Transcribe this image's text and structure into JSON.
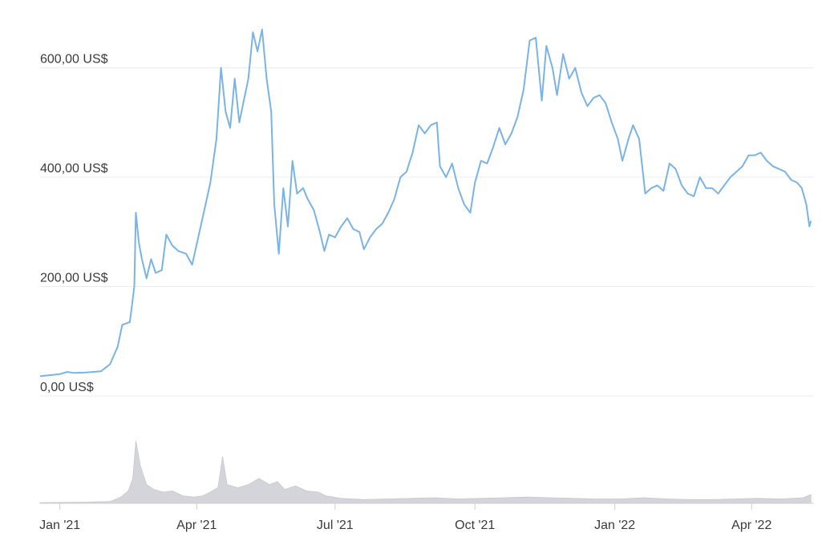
{
  "chart_data": {
    "type": "line",
    "title": "",
    "xlabel": "",
    "ylabel": "",
    "ylim": [
      0,
      680
    ],
    "grid": true,
    "legend": "none",
    "y_ticks": [
      {
        "value": 0,
        "label": "0,00 US$"
      },
      {
        "value": 200,
        "label": "200,00 US$"
      },
      {
        "value": 400,
        "label": "400,00 US$"
      },
      {
        "value": 600,
        "label": "600,00 US$"
      }
    ],
    "x_ticks": [
      {
        "date": "2021-01-01",
        "label": "Jan '21"
      },
      {
        "date": "2021-04-01",
        "label": "Apr '21"
      },
      {
        "date": "2021-07-01",
        "label": "Jul '21"
      },
      {
        "date": "2021-10-01",
        "label": "Oct '21"
      },
      {
        "date": "2022-01-01",
        "label": "Jan '22"
      },
      {
        "date": "2022-04-01",
        "label": "Apr '22"
      }
    ],
    "xlim": [
      "2020-12-19",
      "2022-05-12"
    ],
    "price_color": "#7ab3e8",
    "volume_color": "#d4d5da",
    "series": [
      {
        "values": [
          [
            "2020-12-19",
            36
          ],
          [
            "2021-01-01",
            40
          ],
          [
            "2021-01-06",
            44
          ],
          [
            "2021-01-10",
            42
          ],
          [
            "2021-01-18",
            43
          ],
          [
            "2021-01-28",
            45
          ],
          [
            "2021-02-03",
            58
          ],
          [
            "2021-02-08",
            90
          ],
          [
            "2021-02-11",
            130
          ],
          [
            "2021-02-16",
            135
          ],
          [
            "2021-02-19",
            200
          ],
          [
            "2021-02-20",
            335
          ],
          [
            "2021-02-22",
            280
          ],
          [
            "2021-02-24",
            250
          ],
          [
            "2021-02-27",
            215
          ],
          [
            "2021-03-02",
            250
          ],
          [
            "2021-03-05",
            225
          ],
          [
            "2021-03-09",
            230
          ],
          [
            "2021-03-12",
            295
          ],
          [
            "2021-03-16",
            275
          ],
          [
            "2021-03-20",
            265
          ],
          [
            "2021-03-25",
            260
          ],
          [
            "2021-03-29",
            240
          ],
          [
            "2021-04-02",
            290
          ],
          [
            "2021-04-06",
            340
          ],
          [
            "2021-04-10",
            390
          ],
          [
            "2021-04-14",
            470
          ],
          [
            "2021-04-17",
            600
          ],
          [
            "2021-04-20",
            520
          ],
          [
            "2021-04-23",
            490
          ],
          [
            "2021-04-26",
            580
          ],
          [
            "2021-04-29",
            500
          ],
          [
            "2021-05-02",
            540
          ],
          [
            "2021-05-05",
            580
          ],
          [
            "2021-05-08",
            665
          ],
          [
            "2021-05-11",
            630
          ],
          [
            "2021-05-14",
            670
          ],
          [
            "2021-05-17",
            580
          ],
          [
            "2021-05-20",
            520
          ],
          [
            "2021-05-22",
            350
          ],
          [
            "2021-05-25",
            260
          ],
          [
            "2021-05-28",
            380
          ],
          [
            "2021-05-31",
            310
          ],
          [
            "2021-06-03",
            430
          ],
          [
            "2021-06-06",
            370
          ],
          [
            "2021-06-10",
            380
          ],
          [
            "2021-06-13",
            360
          ],
          [
            "2021-06-17",
            340
          ],
          [
            "2021-06-21",
            300
          ],
          [
            "2021-06-24",
            265
          ],
          [
            "2021-06-27",
            295
          ],
          [
            "2021-07-01",
            290
          ],
          [
            "2021-07-05",
            310
          ],
          [
            "2021-07-09",
            325
          ],
          [
            "2021-07-13",
            305
          ],
          [
            "2021-07-17",
            300
          ],
          [
            "2021-07-20",
            268
          ],
          [
            "2021-07-24",
            290
          ],
          [
            "2021-07-28",
            305
          ],
          [
            "2021-08-01",
            315
          ],
          [
            "2021-08-05",
            335
          ],
          [
            "2021-08-09",
            360
          ],
          [
            "2021-08-13",
            400
          ],
          [
            "2021-08-17",
            410
          ],
          [
            "2021-08-21",
            445
          ],
          [
            "2021-08-25",
            495
          ],
          [
            "2021-08-29",
            480
          ],
          [
            "2021-09-02",
            495
          ],
          [
            "2021-09-06",
            500
          ],
          [
            "2021-09-08",
            420
          ],
          [
            "2021-09-12",
            400
          ],
          [
            "2021-09-16",
            425
          ],
          [
            "2021-09-20",
            380
          ],
          [
            "2021-09-24",
            350
          ],
          [
            "2021-09-28",
            335
          ],
          [
            "2021-10-01",
            390
          ],
          [
            "2021-10-05",
            430
          ],
          [
            "2021-10-09",
            425
          ],
          [
            "2021-10-13",
            455
          ],
          [
            "2021-10-17",
            490
          ],
          [
            "2021-10-21",
            460
          ],
          [
            "2021-10-25",
            480
          ],
          [
            "2021-10-29",
            510
          ],
          [
            "2021-11-02",
            560
          ],
          [
            "2021-11-06",
            650
          ],
          [
            "2021-11-10",
            655
          ],
          [
            "2021-11-14",
            540
          ],
          [
            "2021-11-17",
            640
          ],
          [
            "2021-11-21",
            600
          ],
          [
            "2021-11-24",
            550
          ],
          [
            "2021-11-28",
            625
          ],
          [
            "2021-12-02",
            580
          ],
          [
            "2021-12-06",
            600
          ],
          [
            "2021-12-10",
            555
          ],
          [
            "2021-12-14",
            530
          ],
          [
            "2021-12-18",
            545
          ],
          [
            "2021-12-22",
            550
          ],
          [
            "2021-12-26",
            535
          ],
          [
            "2021-12-30",
            500
          ],
          [
            "2022-01-03",
            470
          ],
          [
            "2022-01-06",
            430
          ],
          [
            "2022-01-10",
            470
          ],
          [
            "2022-01-13",
            495
          ],
          [
            "2022-01-17",
            470
          ],
          [
            "2022-01-21",
            370
          ],
          [
            "2022-01-25",
            380
          ],
          [
            "2022-01-29",
            385
          ],
          [
            "2022-02-02",
            375
          ],
          [
            "2022-02-06",
            425
          ],
          [
            "2022-02-10",
            415
          ],
          [
            "2022-02-14",
            385
          ],
          [
            "2022-02-18",
            370
          ],
          [
            "2022-02-22",
            365
          ],
          [
            "2022-02-26",
            400
          ],
          [
            "2022-03-02",
            380
          ],
          [
            "2022-03-06",
            380
          ],
          [
            "2022-03-10",
            370
          ],
          [
            "2022-03-14",
            385
          ],
          [
            "2022-03-18",
            400
          ],
          [
            "2022-03-22",
            410
          ],
          [
            "2022-03-26",
            420
          ],
          [
            "2022-03-30",
            440
          ],
          [
            "2022-04-03",
            440
          ],
          [
            "2022-04-07",
            445
          ],
          [
            "2022-04-11",
            430
          ],
          [
            "2022-04-15",
            420
          ],
          [
            "2022-04-19",
            415
          ],
          [
            "2022-04-23",
            410
          ],
          [
            "2022-04-27",
            395
          ],
          [
            "2022-05-01",
            390
          ],
          [
            "2022-05-04",
            380
          ],
          [
            "2022-05-07",
            350
          ],
          [
            "2022-05-09",
            310
          ],
          [
            "2022-05-10",
            320
          ]
        ]
      }
    ],
    "volume": [
      [
        "2020-12-19",
        1
      ],
      [
        "2021-01-05",
        1.5
      ],
      [
        "2021-01-20",
        2
      ],
      [
        "2021-02-03",
        3
      ],
      [
        "2021-02-10",
        10
      ],
      [
        "2021-02-15",
        20
      ],
      [
        "2021-02-18",
        40
      ],
      [
        "2021-02-20",
        100
      ],
      [
        "2021-02-23",
        60
      ],
      [
        "2021-02-27",
        30
      ],
      [
        "2021-03-04",
        22
      ],
      [
        "2021-03-10",
        18
      ],
      [
        "2021-03-16",
        20
      ],
      [
        "2021-03-23",
        12
      ],
      [
        "2021-03-30",
        10
      ],
      [
        "2021-04-05",
        12
      ],
      [
        "2021-04-10",
        18
      ],
      [
        "2021-04-15",
        25
      ],
      [
        "2021-04-18",
        75
      ],
      [
        "2021-04-21",
        30
      ],
      [
        "2021-04-28",
        25
      ],
      [
        "2021-05-05",
        30
      ],
      [
        "2021-05-12",
        40
      ],
      [
        "2021-05-19",
        30
      ],
      [
        "2021-05-24",
        35
      ],
      [
        "2021-05-29",
        22
      ],
      [
        "2021-06-05",
        28
      ],
      [
        "2021-06-12",
        20
      ],
      [
        "2021-06-20",
        18
      ],
      [
        "2021-06-25",
        12
      ],
      [
        "2021-07-05",
        8
      ],
      [
        "2021-07-20",
        6
      ],
      [
        "2021-08-05",
        7
      ],
      [
        "2021-08-20",
        8
      ],
      [
        "2021-09-05",
        9
      ],
      [
        "2021-09-20",
        7
      ],
      [
        "2021-10-05",
        8
      ],
      [
        "2021-10-20",
        9
      ],
      [
        "2021-11-05",
        10
      ],
      [
        "2021-11-20",
        9
      ],
      [
        "2021-12-05",
        8
      ],
      [
        "2021-12-20",
        7
      ],
      [
        "2022-01-05",
        7
      ],
      [
        "2022-01-20",
        9
      ],
      [
        "2022-02-05",
        7
      ],
      [
        "2022-02-20",
        6
      ],
      [
        "2022-03-05",
        6
      ],
      [
        "2022-03-20",
        7
      ],
      [
        "2022-04-05",
        8
      ],
      [
        "2022-04-20",
        7
      ],
      [
        "2022-05-05",
        9
      ],
      [
        "2022-05-10",
        14
      ]
    ]
  }
}
